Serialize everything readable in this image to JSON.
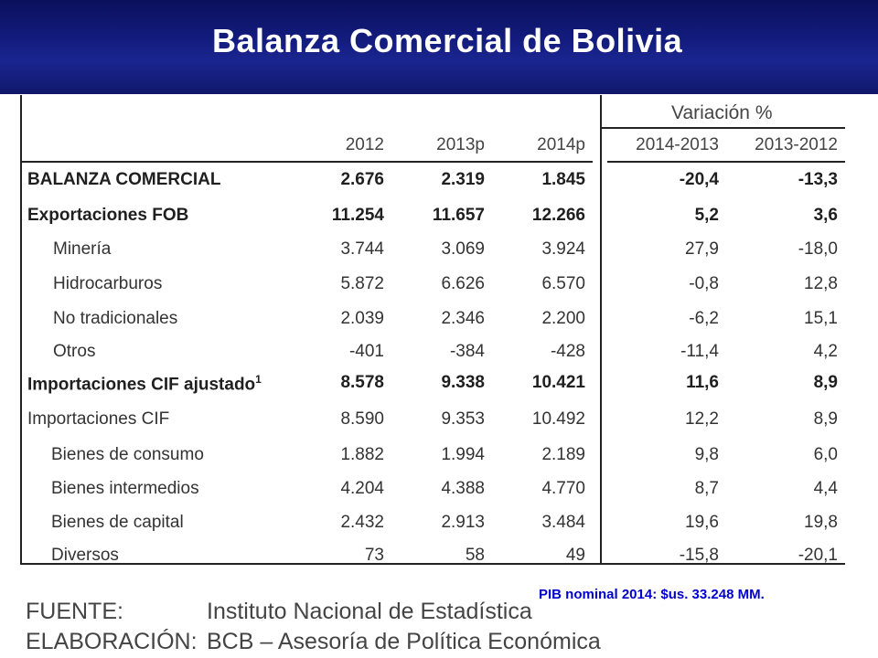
{
  "title": "Balanza Comercial de Bolivia",
  "table": {
    "variation_header": "Variación %",
    "year_columns": [
      "2012",
      "2013p",
      "2014p"
    ],
    "variation_columns": [
      "2014-2013",
      "2013-2012"
    ],
    "rows": [
      {
        "label": "BALANZA COMERCIAL",
        "sup": "",
        "values": [
          "2.676",
          "2.319",
          "1.845"
        ],
        "variations": [
          "-20,4",
          "-13,3"
        ]
      },
      {
        "label": "Exportaciones FOB",
        "sup": "",
        "values": [
          "11.254",
          "11.657",
          "12.266"
        ],
        "variations": [
          "5,2",
          "3,6"
        ]
      },
      {
        "label": "Minería",
        "sup": "",
        "values": [
          "3.744",
          "3.069",
          "3.924"
        ],
        "variations": [
          "27,9",
          "-18,0"
        ]
      },
      {
        "label": "Hidrocarburos",
        "sup": "",
        "values": [
          "5.872",
          "6.626",
          "6.570"
        ],
        "variations": [
          "-0,8",
          "12,8"
        ]
      },
      {
        "label": "No tradicionales",
        "sup": "",
        "values": [
          "2.039",
          "2.346",
          "2.200"
        ],
        "variations": [
          "-6,2",
          "15,1"
        ]
      },
      {
        "label": "Otros",
        "sup": "",
        "values": [
          "-401",
          "-384",
          "-428"
        ],
        "variations": [
          "-11,4",
          "4,2"
        ]
      },
      {
        "label": "Importaciones CIF ajustado",
        "sup": "1",
        "values": [
          "8.578",
          "9.338",
          "10.421"
        ],
        "variations": [
          "11,6",
          "8,9"
        ]
      },
      {
        "label": "Importaciones CIF",
        "sup": "",
        "values": [
          "8.590",
          "9.353",
          "10.492"
        ],
        "variations": [
          "12,2",
          "8,9"
        ]
      },
      {
        "label": "Bienes de consumo",
        "sup": "",
        "values": [
          "1.882",
          "1.994",
          "2.189"
        ],
        "variations": [
          "9,8",
          "6,0"
        ]
      },
      {
        "label": "Bienes intermedios",
        "sup": "",
        "values": [
          "4.204",
          "4.388",
          "4.770"
        ],
        "variations": [
          "8,7",
          "4,4"
        ]
      },
      {
        "label": "Bienes de capital",
        "sup": "",
        "values": [
          "2.432",
          "2.913",
          "3.484"
        ],
        "variations": [
          "19,6",
          "19,8"
        ]
      },
      {
        "label": "Diversos",
        "sup": "",
        "values": [
          "73",
          "58",
          "49"
        ],
        "variations": [
          "-15,8",
          "-20,1"
        ]
      }
    ]
  },
  "source": {
    "fuente_label": "FUENTE:",
    "fuente_value": "Instituto Nacional de Estadística",
    "elaboracion_label": "ELABORACIÓN:",
    "elaboracion_value": "BCB – Asesoría de Política Económica"
  },
  "note": "PIB nominal 2014: $us. 33.248 MM."
}
